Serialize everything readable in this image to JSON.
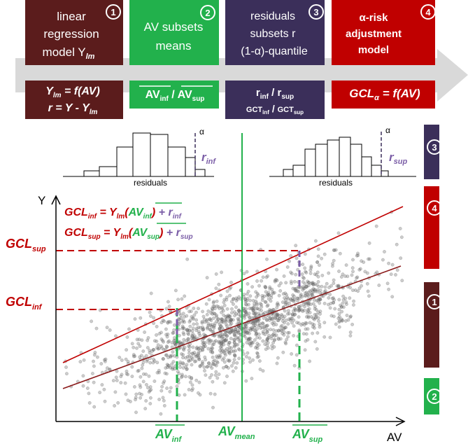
{
  "steps": [
    {
      "number": "1",
      "top_lines": [
        "linear",
        "regression",
        "model Y"
      ],
      "top_sub": "lm",
      "formula_1": "Y",
      "formula_1_sub": "lm",
      "formula_1_tail": " = f(AV)",
      "formula_2": "r = Y - Y",
      "formula_2_sub": "lm",
      "color": "#5b1c1c"
    },
    {
      "number": "2",
      "top_lines": [
        "AV subsets",
        "means"
      ],
      "formula_1": "AV",
      "formula_1_sub": "inf",
      "formula_sep": " / ",
      "formula_2": "AV",
      "formula_2_sub": "sup",
      "color": "#22b14c"
    },
    {
      "number": "3",
      "top_lines": [
        "residuals",
        "subsets r",
        "(1-α)-quantile"
      ],
      "formula_1": "r",
      "formula_1_sub": "inf",
      "formula_sep": " / ",
      "formula_2": "r",
      "formula_2_sub": "sup",
      "formula_3": "GCT",
      "formula_3_sub": "inf",
      "formula_4": "GCT",
      "formula_4_sub": "sup",
      "color": "#3b2f5a"
    },
    {
      "number": "4",
      "top_lines": [
        "α-risk",
        "adjustment",
        "model"
      ],
      "formula_1": "GCL",
      "formula_1_sub": "α",
      "formula_1_tail": " = f(AV)",
      "color": "#c00000"
    }
  ],
  "histograms": {
    "left": {
      "xlabel": "residuals",
      "alpha": "α",
      "r": "r",
      "r_sub": "inf"
    },
    "right": {
      "xlabel": "residuals",
      "alpha": "α",
      "r": "r",
      "r_sub": "sup"
    }
  },
  "plot": {
    "y_axis": "Y",
    "x_axis": "AV",
    "eq_inf": {
      "lhs": "GCL",
      "lhs_sub": "inf",
      "mid": " = Y",
      "mid_sub": "lm",
      "av": "AV",
      "av_sub": "inf",
      "tail": " + r",
      "tail_sub": "inf"
    },
    "eq_sup": {
      "lhs": "GCL",
      "lhs_sub": "sup",
      "mid": " = Y",
      "mid_sub": "lm",
      "av": "AV",
      "av_sub": "sup",
      "tail": " + r",
      "tail_sub": "sup"
    },
    "gcl_sup": {
      "text": "GCL",
      "sub": "sup"
    },
    "gcl_inf": {
      "text": "GCL",
      "sub": "inf"
    },
    "av_inf": {
      "text": "AV",
      "sub": "inf"
    },
    "av_mean": {
      "text": "AV",
      "sub": "mean"
    },
    "av_sup": {
      "text": "AV",
      "sub": "sup"
    }
  },
  "side_markers": [
    "3",
    "4",
    "1",
    "2"
  ],
  "colors": {
    "maroon": "#5b1c1c",
    "green": "#22b14c",
    "purple": "#3b2f5a",
    "red": "#c00000",
    "arrow": "#d9d9d9",
    "scatter": "#6d6d6d",
    "purple_text": "#7b5ea7"
  }
}
